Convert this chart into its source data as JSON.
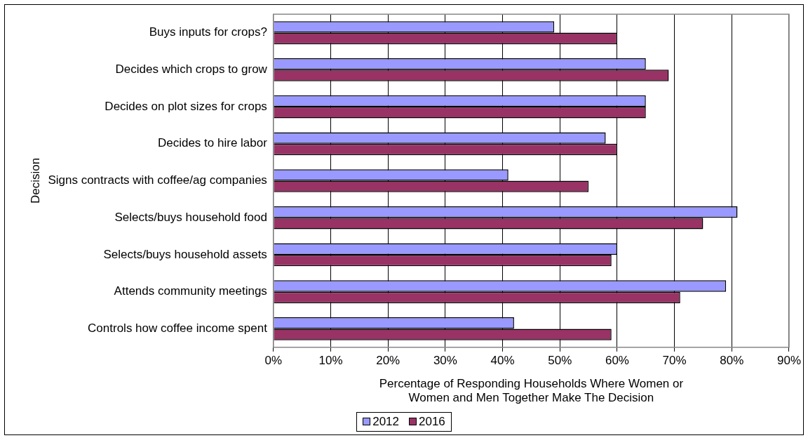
{
  "chart_data": {
    "type": "bar",
    "orientation": "horizontal",
    "xlabel": "Percentage of Responding Households Where Women or Women and Men Together Make The Decision",
    "ylabel": "Decision",
    "categories": [
      "Buys inputs for crops?",
      "Decides which crops to grow",
      "Decides on plot sizes for crops",
      "Decides to hire labor",
      "Signs contracts with coffee/ag companies",
      "Selects/buys household food",
      "Selects/buys household assets",
      "Attends community meetings",
      "Controls how coffee income spent"
    ],
    "series": [
      {
        "name": "2012",
        "color": "#9999ff",
        "values": [
          49,
          65,
          65,
          58,
          41,
          81,
          60,
          79,
          42
        ]
      },
      {
        "name": "2016",
        "color": "#993366",
        "values": [
          60,
          69,
          65,
          60,
          55,
          75,
          59,
          71,
          59
        ]
      }
    ],
    "xlim": [
      0,
      90
    ],
    "xticks": [
      {
        "value": 0,
        "label": "0%"
      },
      {
        "value": 10,
        "label": "10%"
      },
      {
        "value": 20,
        "label": "20%"
      },
      {
        "value": 30,
        "label": "30%"
      },
      {
        "value": 40,
        "label": "40%"
      },
      {
        "value": 50,
        "label": "50%"
      },
      {
        "value": 60,
        "label": "60%"
      },
      {
        "value": 70,
        "label": "70%"
      },
      {
        "value": 80,
        "label": "80%"
      },
      {
        "value": 90,
        "label": "90%"
      }
    ],
    "grid": "x",
    "legend": "bottom"
  }
}
